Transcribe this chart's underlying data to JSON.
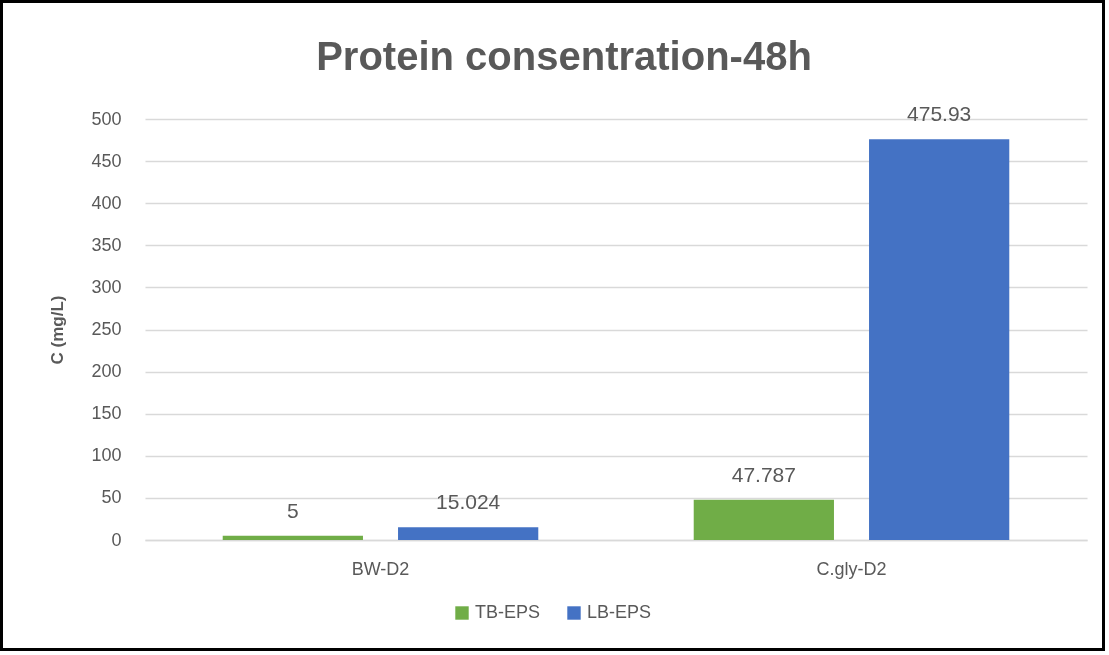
{
  "chart_data": {
    "type": "bar",
    "title": "Protein consentration-48h",
    "ylabel": "C (mg/L)",
    "categories": [
      "BW-D2",
      "C.gly-D2"
    ],
    "series": [
      {
        "name": "TB-EPS",
        "color": "#70ad47",
        "values": [
          5,
          47.787
        ]
      },
      {
        "name": "LB-EPS",
        "color": "#4472c4",
        "values": [
          15.024,
          475.93
        ]
      }
    ],
    "ylim": [
      0,
      500
    ],
    "yticks": [
      0,
      50,
      100,
      150,
      200,
      250,
      300,
      350,
      400,
      450,
      500
    ],
    "grid": "y",
    "legend": "bottom",
    "data_labels": true
  }
}
